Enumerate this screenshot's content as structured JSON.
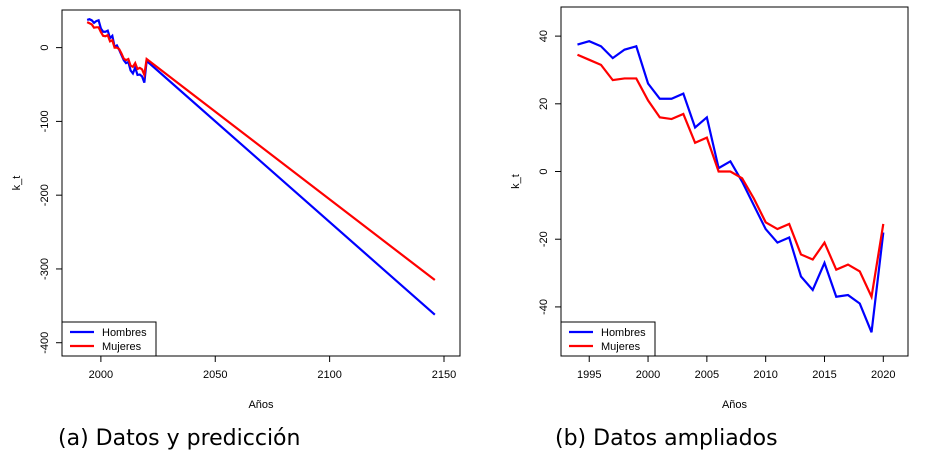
{
  "chart_data": [
    {
      "type": "line",
      "caption": "(a) Datos y predicción",
      "xlabel": "Años",
      "ylabel": "k_t",
      "x": [
        1994,
        1995,
        1996,
        1997,
        1998,
        1999,
        2000,
        2001,
        2002,
        2003,
        2004,
        2005,
        2006,
        2007,
        2008,
        2009,
        2010,
        2011,
        2012,
        2013,
        2014,
        2015,
        2016,
        2017,
        2018,
        2019,
        2020,
        2146
      ],
      "series": [
        {
          "name": "Hombres",
          "color": "#0000ff",
          "values": [
            37.5,
            38.5,
            37,
            33.5,
            36,
            37,
            26,
            21.5,
            21.5,
            23,
            13,
            16,
            1,
            3,
            -3,
            -10,
            -17,
            -21,
            -19.5,
            -31,
            -35,
            -27,
            -37,
            -36.5,
            -39,
            -47.5,
            -18,
            -362
          ]
        },
        {
          "name": "Mujeres",
          "color": "#ff0000",
          "values": [
            34.5,
            33,
            31.5,
            27,
            27.5,
            27.5,
            21,
            16,
            15.5,
            17,
            8.5,
            10,
            0,
            0,
            -2,
            -8,
            -15,
            -17,
            -15.5,
            -24.5,
            -26,
            -21,
            -29,
            -27.5,
            -29.5,
            -37,
            -15.5,
            -315
          ]
        }
      ],
      "xlim": [
        1983,
        2157
      ],
      "xticks": [
        2000,
        2050,
        2100,
        2150
      ],
      "ylim": [
        -418,
        51
      ],
      "yticks": [
        0,
        -100,
        -200,
        -300,
        -400
      ],
      "legend": "bottom-left"
    },
    {
      "type": "line",
      "caption": "(b) Datos ampliados",
      "xlabel": "Años",
      "ylabel": "k_t",
      "x": [
        1994,
        1995,
        1996,
        1997,
        1998,
        1999,
        2000,
        2001,
        2002,
        2003,
        2004,
        2005,
        2006,
        2007,
        2008,
        2009,
        2010,
        2011,
        2012,
        2013,
        2014,
        2015,
        2016,
        2017,
        2018,
        2019,
        2020
      ],
      "series": [
        {
          "name": "Hombres",
          "color": "#0000ff",
          "values": [
            37.5,
            38.5,
            37,
            33.5,
            36,
            37,
            26,
            21.5,
            21.5,
            23,
            13,
            16,
            1,
            3,
            -3,
            -10,
            -17,
            -21,
            -19.5,
            -31,
            -35,
            -27,
            -37,
            -36.5,
            -39,
            -47.5,
            -18
          ]
        },
        {
          "name": "Mujeres",
          "color": "#ff0000",
          "values": [
            34.5,
            33,
            31.5,
            27,
            27.5,
            27.5,
            21,
            16,
            15.5,
            17,
            8.5,
            10,
            0,
            0,
            -2,
            -8,
            -15,
            -17,
            -15.5,
            -24.5,
            -26,
            -21,
            -29,
            -27.5,
            -29.5,
            -37,
            -15.5
          ]
        }
      ],
      "xlim": [
        1992.6,
        2022.1
      ],
      "xticks": [
        1995,
        2000,
        2005,
        2010,
        2015,
        2020
      ],
      "ylim": [
        -54.5,
        48.6
      ],
      "yticks": [
        40,
        20,
        0,
        -20,
        -40
      ],
      "legend": "bottom-left"
    }
  ]
}
